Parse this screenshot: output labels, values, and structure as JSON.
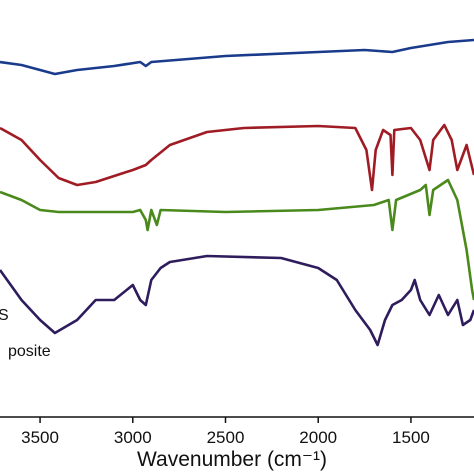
{
  "chart_data": {
    "type": "line",
    "xlabel": "Wavenumber (cm⁻¹)",
    "xlim": [
      3716,
      1160
    ],
    "ylim": [
      0,
      415
    ],
    "xticks": [
      3500,
      3000,
      2500,
      2000,
      1500
    ],
    "annotations": [
      "S",
      "posite"
    ],
    "series": [
      {
        "color": "#1a3a8c",
        "x": [
          3716,
          3600,
          3500,
          3420,
          3300,
          3100,
          2960,
          2930,
          2900,
          2500,
          2000,
          1750,
          1600,
          1500,
          1300,
          1160
        ],
        "values": [
          353,
          350,
          345,
          341,
          345,
          349,
          353,
          349,
          353,
          359,
          363,
          365,
          363,
          367,
          373,
          375
        ]
      },
      {
        "color": "#a01c24",
        "x": [
          3716,
          3600,
          3500,
          3400,
          3300,
          3200,
          3000,
          2930,
          2900,
          2800,
          2600,
          2400,
          2000,
          1800,
          1740,
          1710,
          1690,
          1650,
          1610,
          1600,
          1590,
          1500,
          1450,
          1400,
          1380,
          1320,
          1280,
          1250,
          1200,
          1180,
          1160
        ],
        "values": [
          287,
          275,
          255,
          237,
          230,
          233,
          245,
          250,
          255,
          270,
          283,
          287,
          289,
          287,
          265,
          225,
          265,
          285,
          280,
          240,
          285,
          287,
          275,
          245,
          275,
          290,
          275,
          245,
          270,
          255,
          240
        ]
      },
      {
        "color": "#4a8a1c",
        "x": [
          3716,
          3600,
          3500,
          3400,
          3000,
          2960,
          2930,
          2920,
          2900,
          2870,
          2850,
          2500,
          2000,
          1700,
          1620,
          1600,
          1580,
          1450,
          1420,
          1400,
          1380,
          1300,
          1250,
          1200,
          1170,
          1160
        ],
        "values": [
          223,
          215,
          205,
          203,
          203,
          205,
          195,
          185,
          205,
          190,
          205,
          203,
          205,
          210,
          215,
          185,
          215,
          225,
          230,
          200,
          225,
          235,
          215,
          165,
          125,
          115
        ]
      },
      {
        "color": "#2e1c5c",
        "x": [
          3716,
          3600,
          3500,
          3420,
          3300,
          3200,
          3100,
          3000,
          2960,
          2930,
          2900,
          2850,
          2800,
          2600,
          2200,
          2000,
          1900,
          1800,
          1720,
          1680,
          1640,
          1600,
          1550,
          1500,
          1480,
          1450,
          1400,
          1350,
          1300,
          1250,
          1220,
          1180,
          1160
        ],
        "values": [
          145,
          115,
          95,
          82,
          95,
          115,
          115,
          130,
          115,
          110,
          135,
          147,
          153,
          159,
          157,
          147,
          135,
          105,
          85,
          70,
          95,
          110,
          115,
          125,
          135,
          115,
          100,
          120,
          100,
          115,
          90,
          95,
          105
        ]
      }
    ]
  }
}
